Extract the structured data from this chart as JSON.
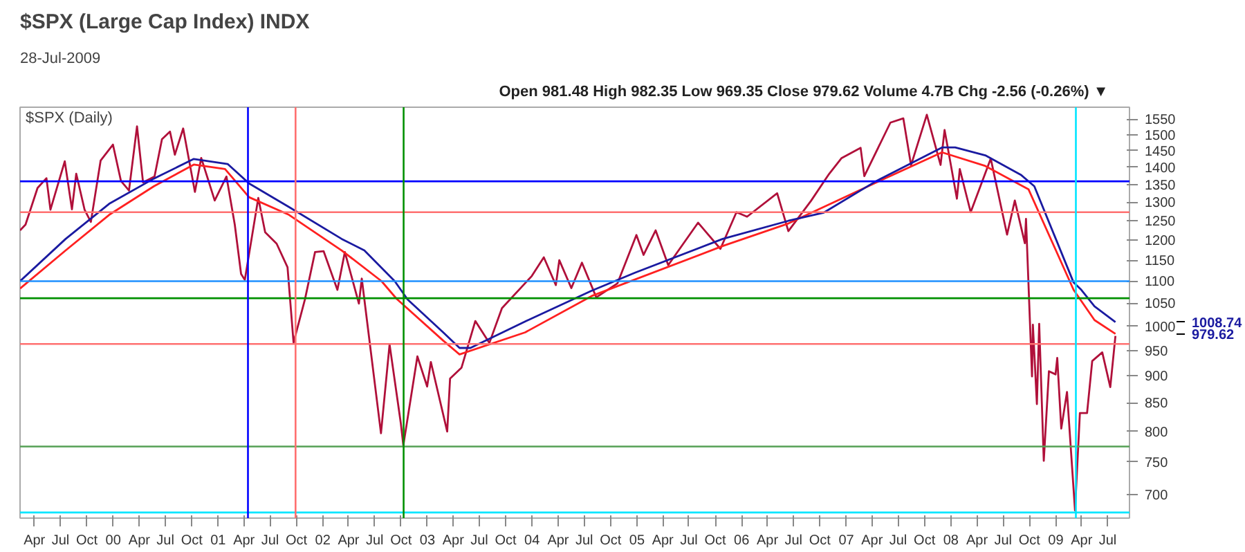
{
  "chart_data": {
    "type": "line",
    "title": "$SPX (Large Cap Index) INDX",
    "subtitle": "28-Jul-2009",
    "annotations": [
      "Open 981.48  High 982.35  Low 969.35  Close 979.62  Volume 4.7B  Chg -2.56 (-0.26%) ▼",
      "$SPX (Daily)",
      "1008.74",
      "979.62"
    ],
    "log": "y",
    "grid": false,
    "marker": "none",
    "line_style": "solid",
    "xlim": [
      "1999-02-10",
      "2009-09-15"
    ],
    "ylim": [
      666,
      1590
    ],
    "yticks": [
      700,
      750,
      800,
      850,
      900,
      950,
      1000,
      1050,
      1100,
      1150,
      1200,
      1250,
      1300,
      1350,
      1400,
      1450,
      1500,
      1550
    ],
    "xticks": [
      {
        "value": "1999-04",
        "label": "Apr"
      },
      {
        "value": "1999-07",
        "label": "Jul"
      },
      {
        "value": "1999-10",
        "label": "Oct"
      },
      {
        "value": "2000-01",
        "label": "00"
      },
      {
        "value": "2000-04",
        "label": "Apr"
      },
      {
        "value": "2000-07",
        "label": "Jul"
      },
      {
        "value": "2000-10",
        "label": "Oct"
      },
      {
        "value": "2001-01",
        "label": "01"
      },
      {
        "value": "2001-04",
        "label": "Apr"
      },
      {
        "value": "2001-07",
        "label": "Jul"
      },
      {
        "value": "2001-10",
        "label": "Oct"
      },
      {
        "value": "2002-01",
        "label": "02"
      },
      {
        "value": "2002-04",
        "label": "Apr"
      },
      {
        "value": "2002-07",
        "label": "Jul"
      },
      {
        "value": "2002-10",
        "label": "Oct"
      },
      {
        "value": "2003-01",
        "label": "03"
      },
      {
        "value": "2003-04",
        "label": "Apr"
      },
      {
        "value": "2003-07",
        "label": "Jul"
      },
      {
        "value": "2003-10",
        "label": "Oct"
      },
      {
        "value": "2004-01",
        "label": "04"
      },
      {
        "value": "2004-04",
        "label": "Apr"
      },
      {
        "value": "2004-07",
        "label": "Jul"
      },
      {
        "value": "2004-10",
        "label": "Oct"
      },
      {
        "value": "2005-01",
        "label": "05"
      },
      {
        "value": "2005-04",
        "label": "Apr"
      },
      {
        "value": "2005-07",
        "label": "Jul"
      },
      {
        "value": "2005-10",
        "label": "Oct"
      },
      {
        "value": "2006-01",
        "label": "06"
      },
      {
        "value": "2006-04",
        "label": "Apr"
      },
      {
        "value": "2006-07",
        "label": "Jul"
      },
      {
        "value": "2006-10",
        "label": "Oct"
      },
      {
        "value": "2007-01",
        "label": "07"
      },
      {
        "value": "2007-04",
        "label": "Apr"
      },
      {
        "value": "2007-07",
        "label": "Jul"
      },
      {
        "value": "2007-10",
        "label": "Oct"
      },
      {
        "value": "2008-01",
        "label": "08"
      },
      {
        "value": "2008-04",
        "label": "Apr"
      },
      {
        "value": "2008-07",
        "label": "Jul"
      },
      {
        "value": "2008-10",
        "label": "Oct"
      },
      {
        "value": "2009-01",
        "label": "09"
      },
      {
        "value": "2009-04",
        "label": "Apr"
      },
      {
        "value": "2009-07",
        "label": "Jul"
      }
    ],
    "ref_lines": [
      {
        "axis": "y",
        "value": 1359,
        "color": "#0000ff"
      },
      {
        "axis": "y",
        "value": 1273,
        "color": "#ff7070"
      },
      {
        "axis": "y",
        "value": 1100,
        "color": "#1e90ff"
      },
      {
        "axis": "y",
        "value": 1061,
        "color": "#009000"
      },
      {
        "axis": "y",
        "value": 963,
        "color": "#ff7070"
      },
      {
        "axis": "y",
        "value": 775,
        "color": "#55a055"
      },
      {
        "axis": "y",
        "value": 674,
        "color": "#00e5ff"
      },
      {
        "axis": "x",
        "value": "2001-04-15",
        "color": "#0000ff"
      },
      {
        "axis": "x",
        "value": "2001-09-28",
        "color": "#ff7070"
      },
      {
        "axis": "x",
        "value": "2002-10-10",
        "color": "#009000"
      },
      {
        "axis": "x",
        "value": "2009-03-12",
        "color": "#00e5ff"
      }
    ],
    "series": [
      {
        "color": "#b0103a",
        "x": [
          "1999-02-10",
          "1999-03-01",
          "1999-04-12",
          "1999-05-13",
          "1999-05-27",
          "1999-07-16",
          "1999-08-10",
          "1999-08-25",
          "1999-09-23",
          "1999-10-15",
          "1999-11-18",
          "1999-12-31",
          "2000-01-28",
          "2000-02-25",
          "2000-03-24",
          "2000-04-14",
          "2000-05-24",
          "2000-06-19",
          "2000-07-17",
          "2000-08-03",
          "2000-09-01",
          "2000-10-12",
          "2000-11-03",
          "2000-12-20",
          "2001-01-30",
          "2001-02-28",
          "2001-03-22",
          "2001-04-04",
          "2001-05-21",
          "2001-06-14",
          "2001-07-24",
          "2001-08-31",
          "2001-09-21",
          "2001-10-31",
          "2001-12-05",
          "2002-01-04",
          "2002-02-21",
          "2002-03-19",
          "2002-05-07",
          "2002-05-17",
          "2002-07-23",
          "2002-08-22",
          "2002-09-30",
          "2002-10-09",
          "2002-11-27",
          "2002-12-31",
          "2003-01-13",
          "2003-03-11",
          "2003-03-21",
          "2003-04-30",
          "2003-06-17",
          "2003-08-05",
          "2003-09-18",
          "2003-12-31",
          "2004-02-11",
          "2004-03-24",
          "2004-04-05",
          "2004-05-17",
          "2004-06-23",
          "2004-08-12",
          "2004-10-25",
          "2004-12-30",
          "2005-01-24",
          "2005-03-07",
          "2005-04-20",
          "2005-08-02",
          "2005-10-19",
          "2005-12-14",
          "2006-01-20",
          "2006-05-05",
          "2006-06-13",
          "2006-08-31",
          "2006-10-31",
          "2006-12-15",
          "2007-02-20",
          "2007-03-05",
          "2007-06-04",
          "2007-07-19",
          "2007-08-15",
          "2007-10-09",
          "2007-11-26",
          "2007-12-10",
          "2008-01-22",
          "2008-02-01",
          "2008-03-10",
          "2008-05-19",
          "2008-07-15",
          "2008-08-11",
          "2008-09-15",
          "2008-09-19",
          "2008-10-10",
          "2008-10-13",
          "2008-10-27",
          "2008-11-04",
          "2008-11-20",
          "2008-12-08",
          "2008-12-31",
          "2009-01-06",
          "2009-01-20",
          "2009-02-09",
          "2009-03-09",
          "2009-03-26",
          "2009-04-20",
          "2009-05-08",
          "2009-06-12",
          "2009-07-10",
          "2009-07-28"
        ],
        "values": [
          1225,
          1240,
          1340,
          1368,
          1280,
          1418,
          1281,
          1381,
          1280,
          1247,
          1420,
          1469,
          1360,
          1333,
          1527,
          1356,
          1373,
          1486,
          1510,
          1438,
          1520,
          1329,
          1428,
          1305,
          1373,
          1240,
          1117,
          1103,
          1312,
          1220,
          1191,
          1133,
          966,
          1059,
          1170,
          1172,
          1080,
          1170,
          1049,
          1106,
          797,
          962,
          815,
          777,
          938,
          880,
          927,
          800,
          895,
          916,
          1011,
          965,
          1039,
          1112,
          1157,
          1091,
          1150,
          1084,
          1144,
          1063,
          1095,
          1213,
          1163,
          1225,
          1138,
          1245,
          1178,
          1273,
          1261,
          1325,
          1223,
          1304,
          1378,
          1427,
          1459,
          1374,
          1539,
          1553,
          1406,
          1565,
          1407,
          1515,
          1310,
          1395,
          1273,
          1426,
          1214,
          1305,
          1192,
          1255,
          899,
          1003,
          848,
          1005,
          752,
          909,
          903,
          935,
          805,
          870,
          677,
          832,
          832,
          929,
          946,
          879,
          979.62
        ]
      },
      {
        "color": "#ff2020",
        "x": [
          "1999-02-10",
          "1999-07-19",
          "1999-12-18",
          "2000-05-22",
          "2000-10-08",
          "2001-01-25",
          "2001-04-19",
          "2001-09-05",
          "2002-03-08",
          "2002-07-25",
          "2002-09-15",
          "2003-02-25",
          "2003-04-23",
          "2003-12-08",
          "2004-07-27",
          "2005-10-27",
          "2006-06-13",
          "2007-04-16",
          "2007-12-01",
          "2008-04-30",
          "2008-09-28",
          "2009-03-04",
          "2009-05-16",
          "2009-07-28"
        ],
        "values": [
          1083,
          1174,
          1266,
          1345,
          1408,
          1395,
          1314,
          1266,
          1174,
          1100,
          1060,
          970,
          942,
          987,
          1066,
          1185,
          1243,
          1356,
          1445,
          1404,
          1336,
          1080,
          1013,
          984
        ]
      },
      {
        "color": "#1a1aa0",
        "x": [
          "1999-02-10",
          "1999-07-19",
          "1999-12-18",
          "2000-05-22",
          "2000-10-08",
          "2001-02-03",
          "2001-04-19",
          "2001-09-05",
          "2002-03-08",
          "2002-05-26",
          "2002-09-09",
          "2002-10-24",
          "2003-02-25",
          "2003-04-23",
          "2003-05-31",
          "2003-12-08",
          "2004-07-27",
          "2004-12-25",
          "2005-10-27",
          "2006-06-13",
          "2006-10-15",
          "2007-04-16",
          "2007-12-01",
          "2008-01-16",
          "2008-04-30",
          "2008-09-01",
          "2008-10-18",
          "2009-03-04",
          "2009-03-31",
          "2009-05-16",
          "2009-07-28"
        ],
        "values": [
          1100,
          1203,
          1296,
          1367,
          1425,
          1410,
          1353,
          1287,
          1203,
          1174,
          1100,
          1058,
          987,
          955,
          955,
          1010,
          1078,
          1120,
          1203,
          1250,
          1272,
          1360,
          1460,
          1460,
          1436,
          1378,
          1345,
          1097,
          1080,
          1043,
          1008.74
        ]
      }
    ]
  }
}
